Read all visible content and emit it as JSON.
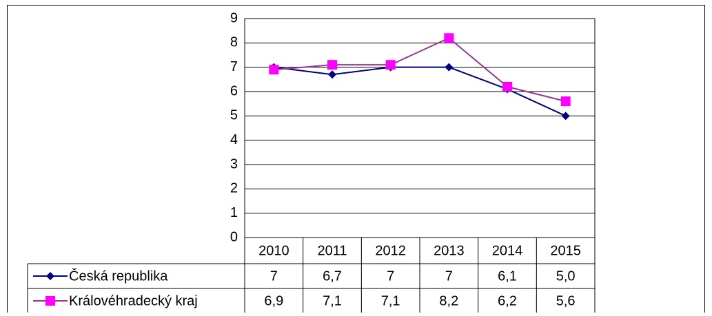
{
  "chart_data": {
    "type": "line",
    "categories": [
      "2010",
      "2011",
      "2012",
      "2013",
      "2014",
      "2015"
    ],
    "series": [
      {
        "name": "Česká republika",
        "color": "#000080",
        "marker_color": "#000080",
        "marker": "diamond",
        "values": [
          7,
          6.7,
          7,
          7,
          6.1,
          5.0
        ],
        "value_labels": [
          "7",
          "6,7",
          "7",
          "7",
          "6,1",
          "5,0"
        ]
      },
      {
        "name": "Královéhradecký kraj",
        "color": "#993399",
        "marker_color": "#ff00ff",
        "marker": "square",
        "values": [
          6.9,
          7.1,
          7.1,
          8.2,
          6.2,
          5.6
        ],
        "value_labels": [
          "6,9",
          "7,1",
          "7,1",
          "8,2",
          "6,2",
          "5,6"
        ]
      }
    ],
    "ylim": [
      0,
      9
    ],
    "yticks": [
      0,
      1,
      2,
      3,
      4,
      5,
      6,
      7,
      8,
      9
    ],
    "grid": true,
    "data_table": true
  }
}
